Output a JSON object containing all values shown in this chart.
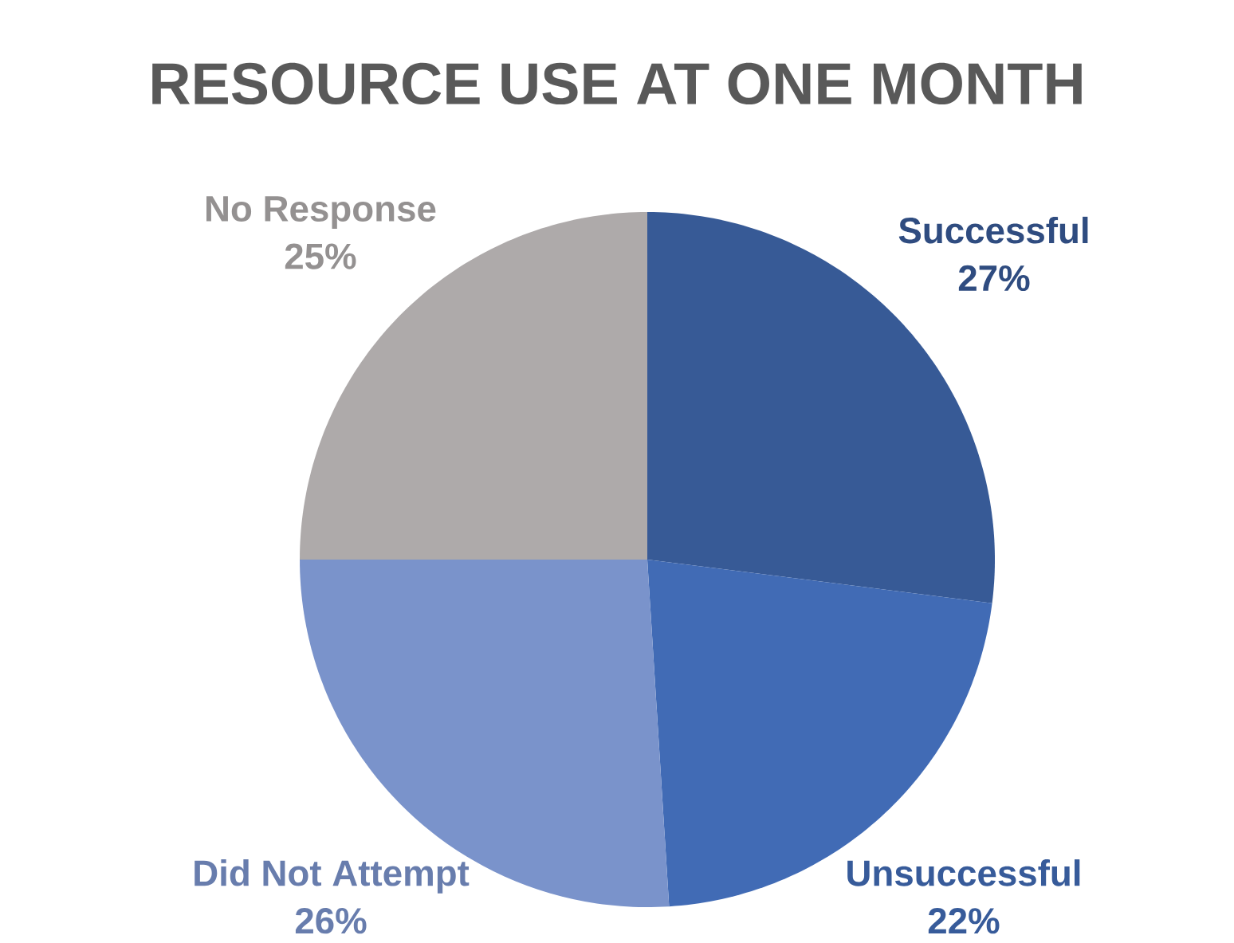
{
  "chart_data": {
    "type": "pie",
    "title": "RESOURCE USE AT ONE MONTH",
    "categories": [
      "Successful",
      "Unsuccessful",
      "Did Not Attempt",
      "No Response"
    ],
    "values": [
      27,
      22,
      26,
      25
    ],
    "value_labels": [
      "27%",
      "22%",
      "26%",
      "25%"
    ],
    "colors": [
      "#375a96",
      "#416bb5",
      "#7a93cb",
      "#aeaaaa"
    ]
  }
}
